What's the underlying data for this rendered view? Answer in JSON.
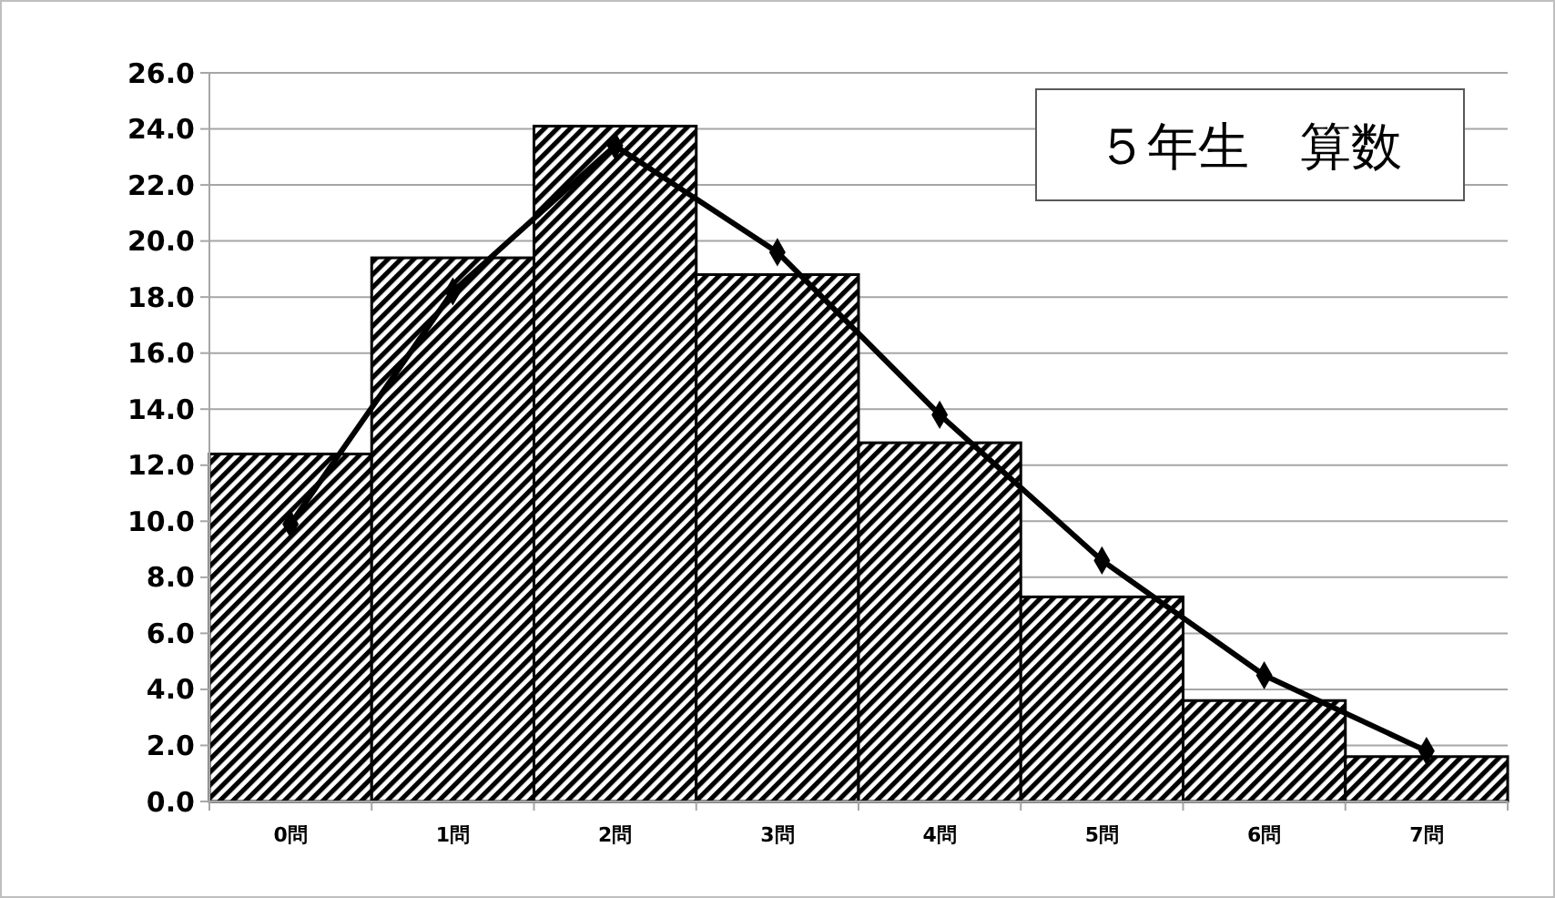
{
  "chart_data": {
    "type": "bar",
    "title": "５年生　算数",
    "categories": [
      "0問",
      "1問",
      "2問",
      "3問",
      "4問",
      "5問",
      "6問",
      "7問"
    ],
    "series": [
      {
        "color": "#000000",
        "values": [
          12.4,
          19.4,
          24.1,
          18.8,
          12.8,
          7.3,
          3.6,
          1.6
        ]
      },
      {
        "type": "line",
        "color": "#000000",
        "marker": "diamond",
        "values": [
          9.9,
          18.2,
          23.4,
          19.6,
          13.8,
          8.6,
          4.5,
          1.8
        ]
      }
    ],
    "ylim": [
      0,
      26
    ],
    "yticks": [
      {
        "value": 0,
        "label": "0.0"
      },
      {
        "value": 2,
        "label": "2.0"
      },
      {
        "value": 4,
        "label": "4.0"
      },
      {
        "value": 6,
        "label": "6.0"
      },
      {
        "value": 8,
        "label": "8.0"
      },
      {
        "value": 10,
        "label": "10.0"
      },
      {
        "value": 12,
        "label": "12.0"
      },
      {
        "value": 14,
        "label": "14.0"
      },
      {
        "value": 16,
        "label": "16.0"
      },
      {
        "value": 18,
        "label": "18.0"
      },
      {
        "value": 20,
        "label": "20.0"
      },
      {
        "value": 22,
        "label": "22.0"
      },
      {
        "value": 24,
        "label": "24.0"
      },
      {
        "value": 26,
        "label": "26.0"
      }
    ],
    "grid": "y"
  }
}
